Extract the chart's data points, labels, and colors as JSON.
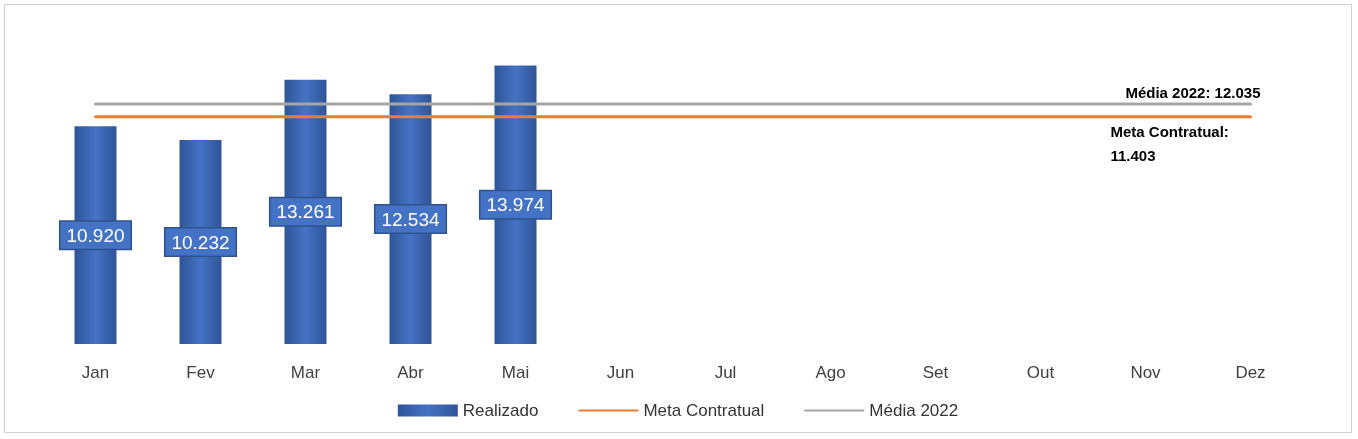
{
  "chart_data": {
    "type": "bar",
    "categories": [
      "Jan",
      "Fev",
      "Mar",
      "Abr",
      "Mai",
      "Jun",
      "Jul",
      "Ago",
      "Set",
      "Out",
      "Nov",
      "Dez"
    ],
    "series": [
      {
        "name": "Realizado",
        "color": "#4472c4",
        "values": [
          10920,
          10232,
          13261,
          12534,
          13974,
          null,
          null,
          null,
          null,
          null,
          null,
          null
        ],
        "value_labels": [
          "10.920",
          "10.232",
          "13.261",
          "12.534",
          "13.974",
          null,
          null,
          null,
          null,
          null,
          null,
          null
        ]
      },
      {
        "name": "Meta Contratual",
        "type": "line",
        "color": "#ed7d31",
        "values": [
          11403,
          11403,
          11403,
          11403,
          11403,
          11403,
          11403,
          11403,
          11403,
          11403,
          11403,
          11403
        ]
      },
      {
        "name": "Média 2022",
        "type": "line",
        "color": "#a5a5a5",
        "values": [
          12035,
          12035,
          12035,
          12035,
          12035,
          12035,
          12035,
          12035,
          12035,
          12035,
          12035,
          12035
        ]
      }
    ],
    "legend": "bottom",
    "grid": false,
    "marker": "none",
    "line_style": "solid",
    "annotations": [
      {
        "text": "Média 2022: 12.035",
        "x": "Dez",
        "y": 12035
      },
      {
        "text": "Meta Contratual: 11.403",
        "x": "Dez",
        "y": 11403
      }
    ]
  }
}
